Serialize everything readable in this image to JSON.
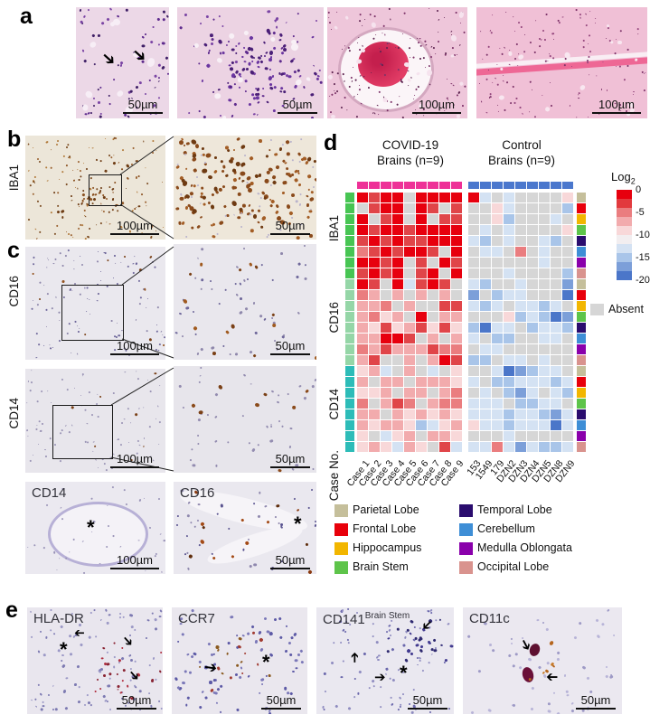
{
  "panel_letters": {
    "a": "a",
    "b": "b",
    "c": "c",
    "d": "d",
    "e": "e"
  },
  "glyphs": {
    "arrow": "➔",
    "asterisk": "*"
  },
  "panel_a": {
    "images": [
      {
        "scale": "50µm"
      },
      {
        "scale": "50µm"
      },
      {
        "scale": "100µm"
      },
      {
        "scale": "100µm"
      }
    ]
  },
  "panel_b": {
    "side_label": "IBA1",
    "images": [
      {
        "scale": "100µm"
      },
      {
        "scale": "50µm"
      }
    ]
  },
  "panel_c": {
    "rows": [
      {
        "side_label": "CD16",
        "scale_main": "100µm",
        "scale_inset": "50µm"
      },
      {
        "side_label": "CD14",
        "scale_main": "100µm",
        "scale_inset": "50µm"
      }
    ],
    "bottom": [
      {
        "label": "CD14",
        "scale": "100µm"
      },
      {
        "label": "CD16",
        "scale": "50µm"
      }
    ]
  },
  "panel_e": {
    "images": [
      {
        "label": "HLA-DR",
        "scale": "50µm"
      },
      {
        "label": "CCR7",
        "scale": "50µm"
      },
      {
        "label": "CD141",
        "superscript": "Brain Stem",
        "scale": "50µm"
      },
      {
        "label": "CD11c",
        "scale": "50µm"
      }
    ]
  },
  "chart_data": {
    "type": "heatmap",
    "title_covid_line1": "COVID-19",
    "title_covid_line2": "Brains  (n=9)",
    "title_control_line1": "Control",
    "title_control_line2": "Brains (n=9)",
    "scale_label": "Log",
    "scale_label_sub": "2",
    "scale_ticks": [
      "0",
      "-5",
      "-10",
      "-15",
      "-20"
    ],
    "absent_label": "Absent",
    "case_no_label": "Case No.",
    "groups": [
      "IBA1",
      "CD16",
      "CD14"
    ],
    "group_colors": {
      "IBA1": "#47c553",
      "CD16": "#95d6a7",
      "CD14": "#2dbcb8"
    },
    "columns_covid": [
      "Case 1",
      "Case 2",
      "Case 3",
      "Case 4",
      "Case 5",
      "Case 6",
      "Case 7",
      "Case 8",
      "Case 9"
    ],
    "columns_control": [
      "153",
      "1549",
      "179",
      "DZN2",
      "DZN3",
      "DZN4",
      "DZN5",
      "DZN8",
      "DZN9"
    ],
    "header_colors": {
      "covid": "#ee3097",
      "control": "#4a77cd"
    },
    "regions": [
      {
        "label": "Parietal Lobe",
        "color": "#c5bf9b"
      },
      {
        "label": "Frontal Lobe",
        "color": "#e8000b"
      },
      {
        "label": "Hippocampus",
        "color": "#f2b600"
      },
      {
        "label": "Brain Stem",
        "color": "#5ec44a"
      },
      {
        "label": "Temporal Lobe",
        "color": "#2a0c6e"
      },
      {
        "label": "Cerebellum",
        "color": "#3e8ed6"
      },
      {
        "label": "Medulla Oblongata",
        "color": "#8a00ab"
      },
      {
        "label": "Occipital Lobe",
        "color": "#d9938e"
      }
    ],
    "code_values": {
      "R": 0,
      "r": -3,
      "m": -5,
      "p": -8,
      "P": -10,
      "b": -13,
      "B": -16,
      "D": -19,
      "K": -21,
      "A": "Absent"
    },
    "code_colors": {
      "R": "#e7000e",
      "r": "#e04549",
      "m": "#ea7d7f",
      "p": "#f2abad",
      "P": "#f8d8d9",
      "b": "#d4e2f3",
      "B": "#a9c5e9",
      "D": "#7c9fd9",
      "K": "#4b76c9",
      "A": "#d6d6d6"
    },
    "colorbar_colors": [
      "#e7000e",
      "#e23a3e",
      "#ea7d7f",
      "#f2abad",
      "#f8d8d9",
      "#f2eef0",
      "#d4e2f3",
      "#a9c5e9",
      "#7c9fd9",
      "#4b76c9"
    ],
    "grid": [
      "RrRRARRRRRbAbAAAAP",
      "ArRRARrArAAPbAAAAB",
      "RArRARArrAAPBAAAbA",
      "RrRRrRRRRAbAbAAAAP",
      "rRrRrrRRRbBAbAAbBA",
      "mrRrRRrARAbbAmAbAA",
      "RRrRArARrAAAAAAbAA",
      "rRrRArRARAAAbAAAAB",
      "RrARbrRrAbBAAbAAAD",
      "mpApApApADABbbAAAK",
      "ppmApAArrbBbAbbBbA",
      "pmPpARAppAAAPBbBKD",
      "pPrPprPrPBKbbABbbB",
      "ppRRrApApbABBAAbbA",
      "mprppprmmAbbAAAAAA",
      "prAApApRrBBAbbAbAA",
      "PpbApAbAPAAbKDBbbA",
      "pAppApppPbABBbbbBb",
      "PPpAppApmAbABDbAbB",
      "mAprmApmmbbbABBbbA",
      "ppApPpPpPbbbBbbBDb",
      "pPppPBbPpPbbBbbbKb",
      "PAbPpAppPAAAbAAAAA",
      "PpPbpPArbbbmbDbBBb"
    ]
  }
}
